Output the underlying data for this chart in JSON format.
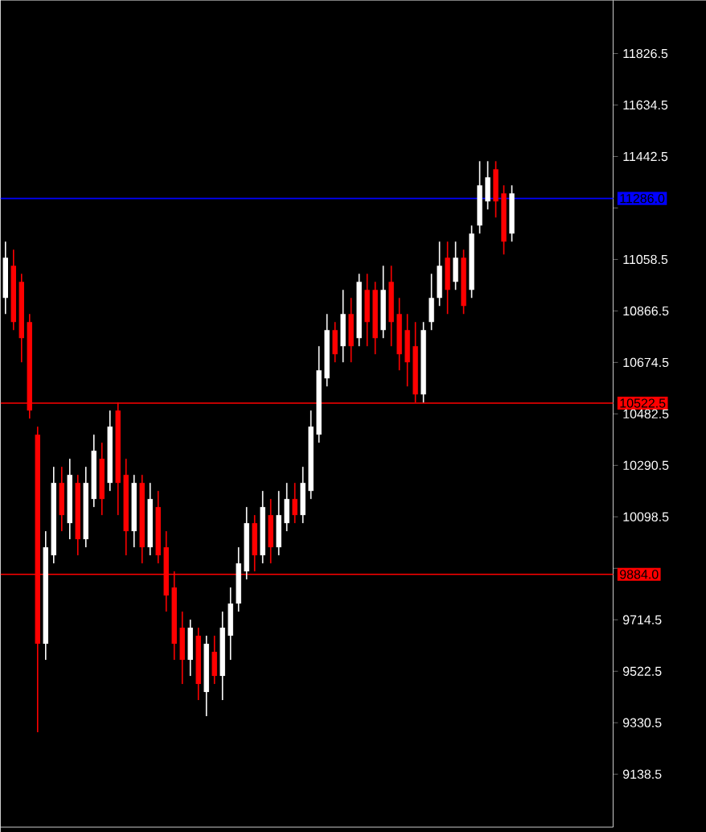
{
  "chart_data": {
    "type": "candlestick",
    "categories": [
      null,
      null,
      null,
      null,
      null,
      null,
      null,
      null,
      null,
      null,
      null,
      null,
      null,
      null,
      null,
      null,
      null,
      null,
      null,
      null,
      null,
      null,
      null,
      null,
      null,
      null,
      null,
      null,
      null,
      null,
      null,
      null,
      null,
      null,
      null,
      null,
      null,
      null,
      null,
      null,
      null,
      null,
      null,
      null,
      null,
      null,
      null,
      null,
      null,
      null,
      null,
      null,
      null,
      null,
      null,
      null,
      null,
      null,
      null,
      null,
      null,
      null,
      null,
      null,
      null,
      null,
      null,
      null,
      null,
      null,
      null,
      null,
      null,
      null,
      null,
      null
    ],
    "ohlc": [
      [
        10915,
        11125,
        10855,
        11065
      ],
      [
        11035,
        11095,
        10795,
        10825
      ],
      [
        10975,
        11005,
        10675,
        10765
      ],
      [
        10825,
        10855,
        10465,
        10495
      ],
      [
        10405,
        10435,
        9295,
        9625
      ],
      [
        9625,
        10045,
        9565,
        9985
      ],
      [
        9955,
        10285,
        9925,
        10225
      ],
      [
        10225,
        10285,
        10045,
        10105
      ],
      [
        10075,
        10315,
        10015,
        10255
      ],
      [
        10225,
        10255,
        9955,
        10015
      ],
      [
        10015,
        10285,
        9985,
        10225
      ],
      [
        10165,
        10405,
        10135,
        10345
      ],
      [
        10315,
        10375,
        10105,
        10165
      ],
      [
        10225,
        10495,
        10195,
        10435
      ],
      [
        10495,
        10525,
        10105,
        10225
      ],
      [
        10255,
        10315,
        9955,
        10045
      ],
      [
        10045,
        10255,
        9985,
        10225
      ],
      [
        10225,
        10255,
        9925,
        9985
      ],
      [
        9985,
        10225,
        9955,
        10165
      ],
      [
        10135,
        10195,
        9925,
        9955
      ],
      [
        9985,
        10045,
        9745,
        9805
      ],
      [
        9835,
        9895,
        9565,
        9625
      ],
      [
        9685,
        9745,
        9475,
        9565
      ],
      [
        9565,
        9715,
        9505,
        9685
      ],
      [
        9655,
        9685,
        9415,
        9475
      ],
      [
        9445,
        9655,
        9355,
        9625
      ],
      [
        9595,
        9655,
        9475,
        9505
      ],
      [
        9505,
        9745,
        9415,
        9685
      ],
      [
        9655,
        9835,
        9565,
        9775
      ],
      [
        9775,
        9985,
        9745,
        9925
      ],
      [
        9895,
        10135,
        9865,
        10075
      ],
      [
        10075,
        10105,
        9895,
        9955
      ],
      [
        9955,
        10195,
        9925,
        10135
      ],
      [
        10105,
        10165,
        9925,
        9985
      ],
      [
        9985,
        10195,
        9955,
        10105
      ],
      [
        10075,
        10225,
        10045,
        10165
      ],
      [
        10165,
        10225,
        10075,
        10105
      ],
      [
        10105,
        10285,
        10075,
        10225
      ],
      [
        10195,
        10495,
        10165,
        10435
      ],
      [
        10405,
        10735,
        10375,
        10645
      ],
      [
        10615,
        10855,
        10585,
        10795
      ],
      [
        10795,
        10825,
        10675,
        10705
      ],
      [
        10735,
        10945,
        10675,
        10855
      ],
      [
        10855,
        10915,
        10675,
        10735
      ],
      [
        10765,
        11005,
        10735,
        10975
      ],
      [
        10945,
        11005,
        10735,
        10825
      ],
      [
        10945,
        10975,
        10705,
        10765
      ],
      [
        10795,
        11035,
        10765,
        10945
      ],
      [
        10975,
        11035,
        10735,
        10825
      ],
      [
        10855,
        10915,
        10645,
        10705
      ],
      [
        10795,
        10855,
        10585,
        10675
      ],
      [
        10735,
        10825,
        10525,
        10555
      ],
      [
        10555,
        10825,
        10525,
        10795
      ],
      [
        10825,
        11005,
        10795,
        10915
      ],
      [
        10915,
        11125,
        10885,
        11035
      ],
      [
        11065,
        11125,
        10855,
        10945
      ],
      [
        10975,
        11125,
        10945,
        11065
      ],
      [
        11065,
        11095,
        10855,
        10885
      ],
      [
        10945,
        11185,
        10915,
        11155
      ],
      [
        11185,
        11425,
        11155,
        11335
      ],
      [
        11275,
        11425,
        11245,
        11365
      ],
      [
        11395,
        11425,
        11215,
        11275
      ],
      [
        11305,
        11335,
        11077,
        11125
      ],
      [
        11155,
        11335,
        11125,
        11305
      ],
      null,
      null,
      null,
      null,
      null,
      null,
      null,
      null,
      null,
      null,
      null,
      null
    ],
    "colors": [
      "#ffffff",
      "#ff0000",
      "#ff0000",
      "#ff0000",
      "#ff0000",
      "#ffffff",
      "#ffffff",
      "#ff0000",
      "#ffffff",
      "#ff0000",
      "#ffffff",
      "#ffffff",
      "#ff0000",
      "#ffffff",
      "#ff0000",
      "#ff0000",
      "#ffffff",
      "#ff0000",
      "#ffffff",
      "#ff0000",
      "#ff0000",
      "#ff0000",
      "#ff0000",
      "#ffffff",
      "#ff0000",
      "#ffffff",
      "#ff0000",
      "#ffffff",
      "#ffffff",
      "#ffffff",
      "#ffffff",
      "#ff0000",
      "#ffffff",
      "#ff0000",
      "#ffffff",
      "#ffffff",
      "#ff0000",
      "#ffffff",
      "#ffffff",
      "#ffffff",
      "#ffffff",
      "#ff0000",
      "#ffffff",
      "#ff0000",
      "#ffffff",
      "#ff0000",
      "#ff0000",
      "#ffffff",
      "#ff0000",
      "#ff0000",
      "#ff0000",
      "#ff0000",
      "#ffffff",
      "#ffffff",
      "#ffffff",
      "#ff0000",
      "#ffffff",
      "#ff0000",
      "#ffffff",
      "#ffffff",
      "#ffffff",
      "#ff0000",
      "#ff0000",
      "#ffffff",
      null,
      null,
      null,
      null,
      null,
      null,
      null,
      null,
      null,
      null,
      null,
      null
    ],
    "ylim": [
      8941,
      12025
    ],
    "yticks": [
      11826.5,
      11634.5,
      11442.5,
      {
        "value": 11250.5,
        "label": null
      },
      11058.5,
      10866.5,
      10674.5,
      10482.5,
      10290.5,
      10098.5,
      {
        "value": 9906.5,
        "label": null
      },
      9714.5,
      9522.5,
      9330.5,
      9138.5
    ],
    "tick_labels": "y",
    "ref_lines": [
      {
        "axis": "y",
        "value": 11286.0,
        "label": "11286.0",
        "color": "#0000ff"
      },
      {
        "axis": "y",
        "value": 10522.5,
        "label": "10522.5",
        "color": "#ff0000"
      },
      {
        "axis": "y",
        "value": 9884.0,
        "label": "9884.0",
        "color": "#ff0000"
      }
    ]
  }
}
